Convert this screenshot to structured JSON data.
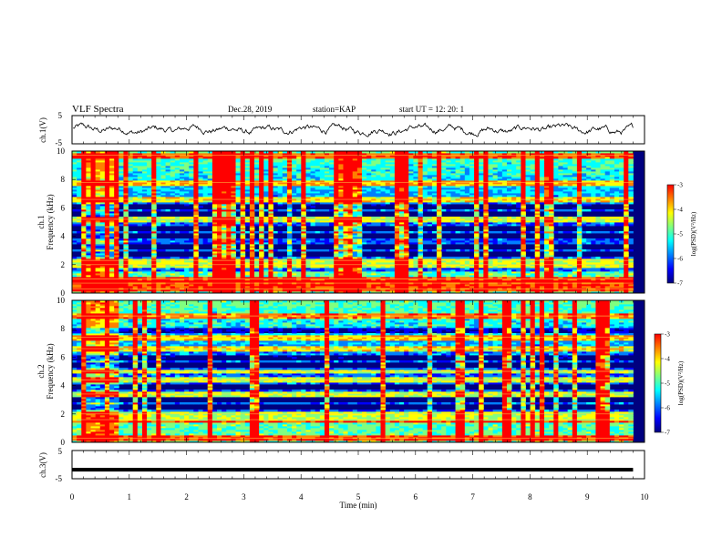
{
  "header": {
    "title": "VLF Spectra",
    "date": "Dec.28, 2019",
    "station": "station=KAP",
    "start": "start  UT =   12: 20: 1"
  },
  "chart_data": [
    {
      "type": "line",
      "name": "ch1-waveform",
      "ylabel": "ch.1(V)",
      "yticks": [
        "5",
        "-5"
      ],
      "ylim": [
        -5,
        5
      ],
      "xlim": [
        0,
        10
      ],
      "approx_level": 0,
      "approx_amplitude": 1.5
    },
    {
      "type": "heatmap",
      "name": "ch1-spectrogram",
      "ylabel_line1": "ch.1",
      "ylabel_line2": "Frequency (kHz)",
      "yticks": [
        "0",
        "2",
        "4",
        "6",
        "8",
        "10"
      ],
      "ylim": [
        0,
        10
      ],
      "xlim": [
        0,
        10
      ],
      "colorbar": {
        "label": "log(PSD)(V²/Hz)",
        "ticks": [
          "-3",
          "-4",
          "-5",
          "-6",
          "-7"
        ],
        "range": [
          -7,
          -3
        ]
      },
      "bright_bands_khz": [
        0.3,
        0.7,
        1.0,
        2.0,
        2.3,
        5.2,
        6.6,
        7.8,
        9.7
      ],
      "dark_bands_khz": [
        2.8,
        3.3,
        4.0,
        4.6,
        5.6,
        6.1
      ],
      "strong_segment_min": [
        0.25,
        0.82
      ]
    },
    {
      "type": "heatmap",
      "name": "ch2-spectrogram",
      "ylabel_line1": "ch.2",
      "ylabel_line2": "Frequency (kHz)",
      "yticks": [
        "0",
        "2",
        "4",
        "6",
        "8",
        "10"
      ],
      "ylim": [
        0,
        10
      ],
      "xlim": [
        0,
        10
      ],
      "colorbar": {
        "label": "log(PSD)(V²/Hz)",
        "ticks": [
          "-3",
          "-4",
          "-5",
          "-6",
          "-7"
        ],
        "range": [
          -7,
          -3
        ]
      },
      "bright_bands_khz": [
        0.3,
        1.6,
        2.0,
        3.4,
        4.4,
        5.0,
        6.6,
        7.4,
        8.9
      ],
      "dark_bands_khz": [
        2.5,
        3.0,
        3.9,
        5.4,
        6.0,
        7.9
      ],
      "strong_segment_min": [
        0.25,
        0.82
      ]
    },
    {
      "type": "line",
      "name": "ch3-waveform",
      "ylabel": "ch.3(V)",
      "yticks": [
        "5",
        "-5"
      ],
      "ylim": [
        -5,
        5
      ],
      "xlim": [
        0,
        10
      ],
      "approx_level": -1.8,
      "approx_amplitude": 0.05
    }
  ],
  "xaxis": {
    "label": "Time (min)",
    "ticks": [
      "0",
      "1",
      "2",
      "3",
      "4",
      "5",
      "6",
      "7",
      "8",
      "9",
      "10"
    ],
    "data_end_min": 9.8
  },
  "colors": {
    "colormap": [
      "#00007f",
      "#0000ff",
      "#0080ff",
      "#00ffff",
      "#80ff80",
      "#ffff00",
      "#ff8000",
      "#ff0000",
      "#ffffff"
    ],
    "trace": "#000000"
  }
}
